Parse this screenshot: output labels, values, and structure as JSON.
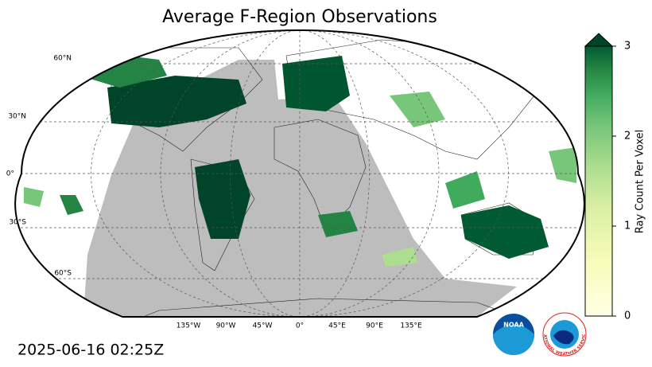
{
  "title": "Average F-Region Observations",
  "lat_labels": [
    "60°N",
    "30°N",
    "0°",
    "30°S",
    "60°S"
  ],
  "lon_labels": [
    "135°W",
    "90°W",
    "45°W",
    "0°",
    "45°E",
    "90°E",
    "135°E"
  ],
  "colorbar": {
    "label": "Ray Count Per Voxel",
    "lim": [
      0,
      3
    ],
    "ticks": [
      0,
      1,
      2,
      3
    ]
  },
  "timestamp": "2025-06-16 02:25Z",
  "logos": {
    "noaa": "NOAA",
    "nws": "NATIONAL WEATHER SERVICE"
  }
}
